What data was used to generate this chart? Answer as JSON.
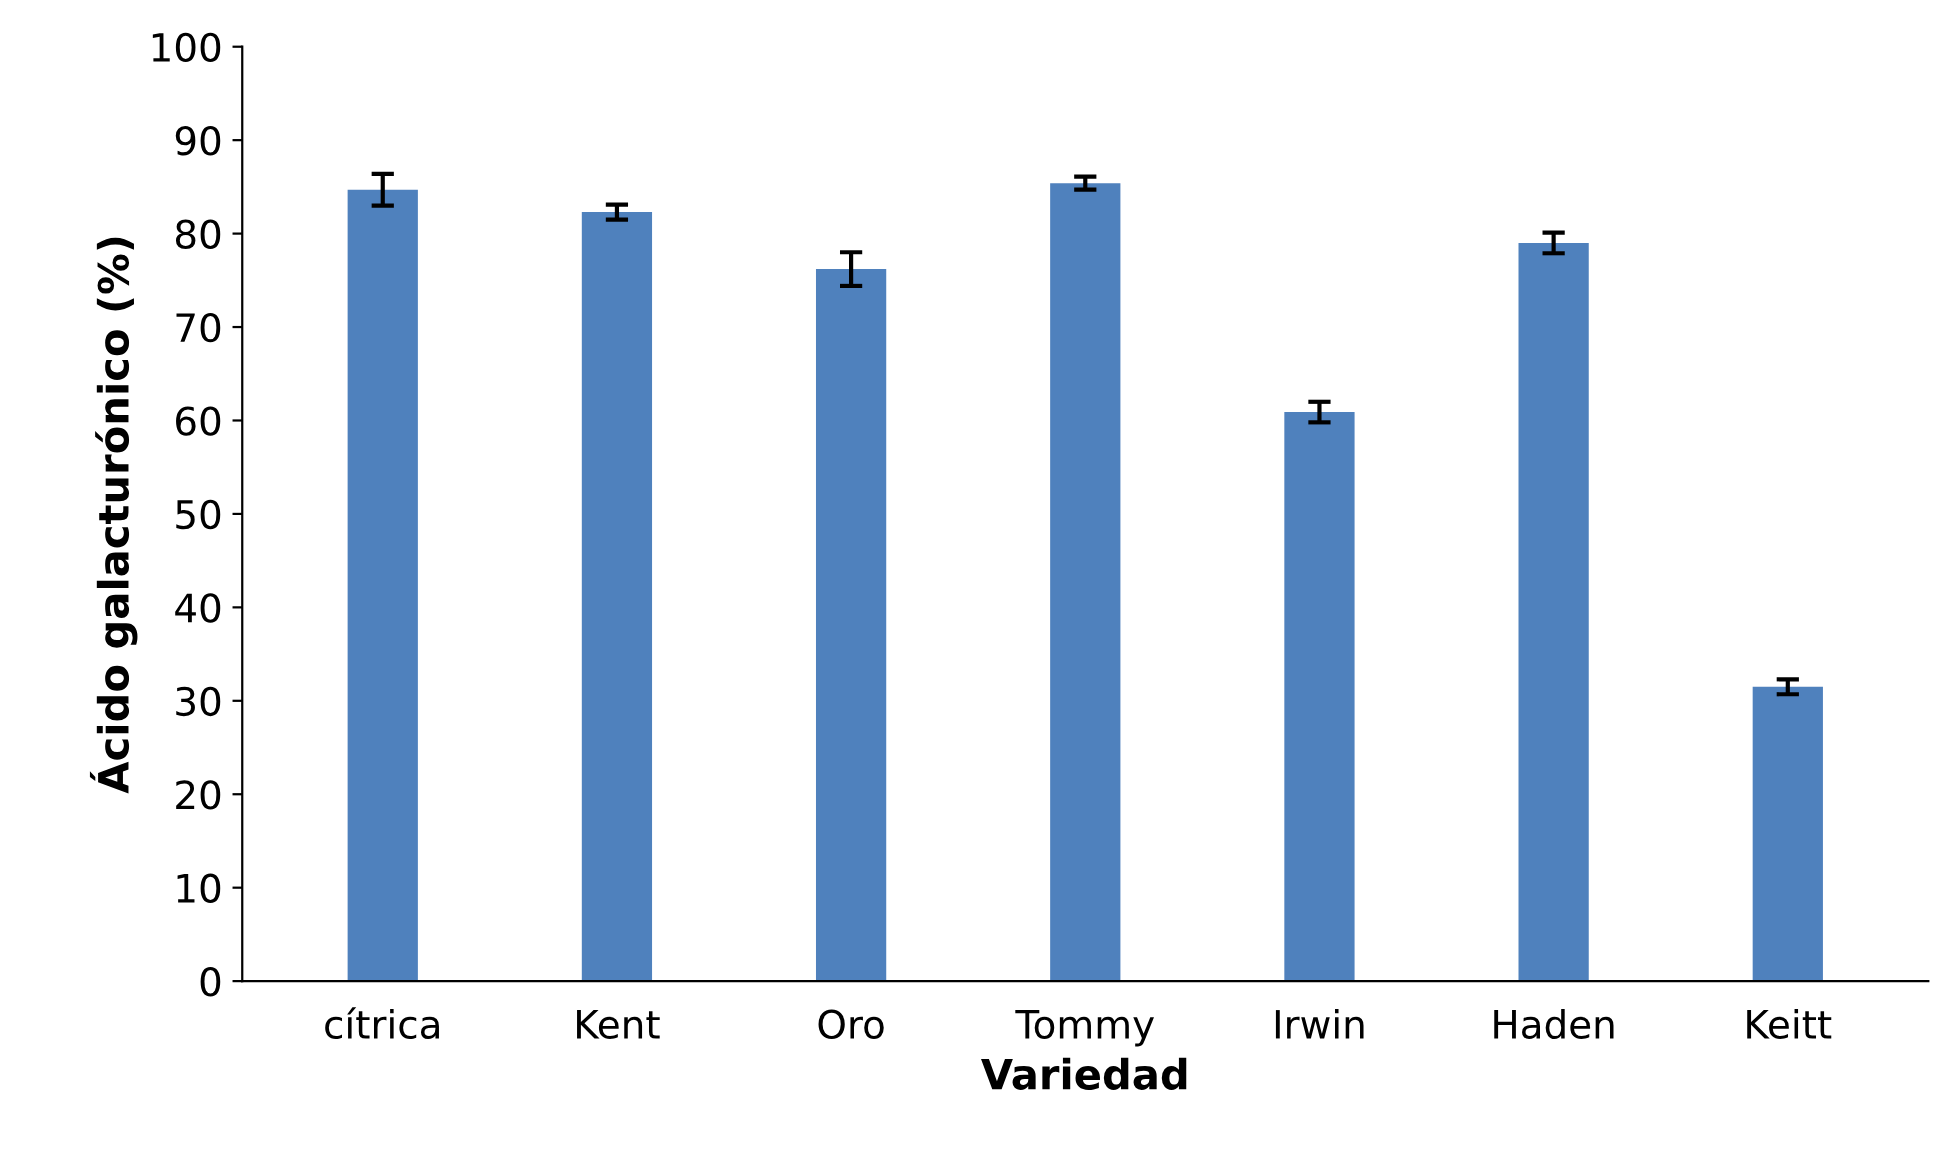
{
  "chart_data": {
    "type": "bar",
    "xlabel": "Variedad",
    "ylabel": "Ácido galacturónico (%)",
    "categories": [
      "cítrica",
      "Kent",
      "Oro",
      "Tommy",
      "Irwin",
      "Haden",
      "Keitt"
    ],
    "values": [
      84.7,
      82.3,
      76.2,
      85.4,
      60.9,
      79.0,
      31.5
    ],
    "errors": [
      1.7,
      0.8,
      1.8,
      0.7,
      1.1,
      1.1,
      0.8
    ],
    "color": "#4f81bd",
    "ylim": [
      0,
      100
    ],
    "yticks": [
      0,
      10,
      20,
      30,
      40,
      50,
      60,
      70,
      80,
      90,
      100
    ],
    "grid": false,
    "legend": false
  }
}
